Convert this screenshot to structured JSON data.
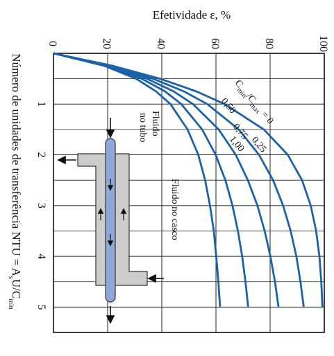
{
  "chart_data": {
    "type": "line",
    "y_axis": {
      "title": "Efetividade ε, %",
      "ticks": [
        "0",
        "20",
        "40",
        "60",
        "80",
        "100"
      ],
      "range": [
        0,
        100
      ]
    },
    "x_axis": {
      "title": "Número de unidades de transferência NTU = A",
      "title_sub_s": "s",
      "title_tail": "U/C",
      "title_sub_min": "min",
      "ticks": [
        "1",
        "2",
        "3",
        "4",
        "5"
      ],
      "range": [
        0,
        5.5
      ]
    },
    "legend": {
      "param_c": "C",
      "param_min": "min",
      "param_slash": "/C",
      "param_max": "max",
      "param_eq": "= 0",
      "series_labels": [
        "0,25",
        "0,50",
        "0,75",
        "1,00"
      ]
    },
    "series": [
      {
        "param": 0,
        "x": [
          0,
          0.25,
          0.5,
          0.75,
          1,
          1.5,
          2,
          2.5,
          3,
          3.5,
          4,
          4.5,
          5
        ],
        "y": [
          0,
          22.1,
          39.3,
          52.8,
          63.2,
          77.7,
          86.5,
          91.8,
          95.0,
          97.0,
          98.2,
          98.9,
          99.3
        ]
      },
      {
        "param": 0.25,
        "x": [
          0,
          0.25,
          0.5,
          0.75,
          1,
          1.5,
          2,
          2.5,
          3,
          3.5,
          4,
          4.5,
          5
        ],
        "y": [
          0,
          21.2,
          36.7,
          48.2,
          56.8,
          68.4,
          75.9,
          81.1,
          84.8,
          87.6,
          89.7,
          91.2,
          92.4
        ]
      },
      {
        "param": 0.5,
        "x": [
          0,
          0.25,
          0.5,
          0.75,
          1,
          1.5,
          2,
          2.5,
          3,
          3.5,
          4,
          4.5,
          5
        ],
        "y": [
          0,
          20.5,
          34.5,
          44.4,
          51.5,
          61.0,
          67.3,
          71.8,
          75.3,
          78.0,
          80.1,
          81.8,
          83.1
        ]
      },
      {
        "param": 0.75,
        "x": [
          0,
          0.25,
          0.5,
          0.75,
          1,
          1.5,
          2,
          2.5,
          3,
          3.5,
          4,
          4.5,
          5
        ],
        "y": [
          0,
          19.8,
          32.6,
          41.2,
          47.2,
          54.9,
          59.9,
          63.5,
          66.1,
          68.1,
          69.7,
          70.9,
          71.9
        ]
      },
      {
        "param": 1.0,
        "x": [
          0,
          0.25,
          0.5,
          0.75,
          1,
          1.5,
          2,
          2.5,
          3,
          3.5,
          4,
          4.5,
          5
        ],
        "y": [
          0,
          19.0,
          30.5,
          37.9,
          43.2,
          49.5,
          53.5,
          56.0,
          57.8,
          59.2,
          60.1,
          60.9,
          61.5
        ]
      }
    ],
    "annotations": {
      "tube_fluid_line1": "Fluido",
      "tube_fluid_line2": "no tubo",
      "shell_fluid": "Fluido no casco"
    },
    "colors": {
      "curve": "#1b63a8",
      "tube": "#8fa8d8",
      "shell": "#cccccc",
      "grid": "#222222"
    },
    "grid": true
  }
}
